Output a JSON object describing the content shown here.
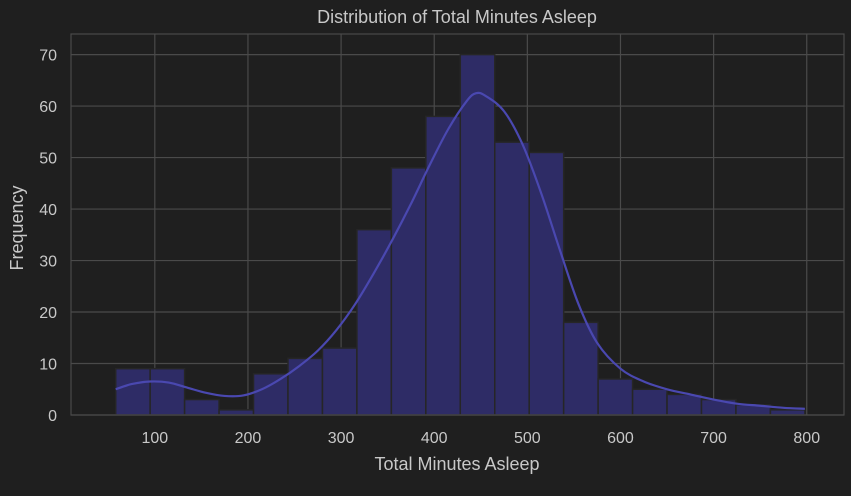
{
  "chart_data": {
    "type": "bar",
    "title": "Distribution of Total Minutes Asleep",
    "xlabel": "Total Minutes Asleep",
    "ylabel": "Frequency",
    "xlim": [
      10,
      840
    ],
    "ylim": [
      0,
      74
    ],
    "xticks": [
      100,
      200,
      300,
      400,
      500,
      600,
      700,
      800
    ],
    "yticks": [
      0,
      10,
      20,
      30,
      40,
      50,
      60,
      70
    ],
    "grid": true,
    "legend": "none",
    "bins": [
      {
        "start": 58,
        "end": 95,
        "count": 9
      },
      {
        "start": 95,
        "end": 132,
        "count": 9
      },
      {
        "start": 132,
        "end": 169,
        "count": 3
      },
      {
        "start": 169,
        "end": 206,
        "count": 1
      },
      {
        "start": 206,
        "end": 243,
        "count": 8
      },
      {
        "start": 243,
        "end": 280,
        "count": 11
      },
      {
        "start": 280,
        "end": 317,
        "count": 13
      },
      {
        "start": 317,
        "end": 354,
        "count": 36
      },
      {
        "start": 354,
        "end": 391,
        "count": 48
      },
      {
        "start": 391,
        "end": 428,
        "count": 58
      },
      {
        "start": 428,
        "end": 465,
        "count": 70
      },
      {
        "start": 465,
        "end": 502,
        "count": 53
      },
      {
        "start": 502,
        "end": 539,
        "count": 51
      },
      {
        "start": 539,
        "end": 576,
        "count": 18
      },
      {
        "start": 576,
        "end": 613,
        "count": 7
      },
      {
        "start": 613,
        "end": 650,
        "count": 5
      },
      {
        "start": 650,
        "end": 687,
        "count": 4
      },
      {
        "start": 687,
        "end": 724,
        "count": 3
      },
      {
        "start": 724,
        "end": 761,
        "count": 2
      },
      {
        "start": 761,
        "end": 798,
        "count": 1
      }
    ],
    "kde": {
      "x": [
        58,
        75,
        95,
        115,
        135,
        155,
        175,
        195,
        215,
        235,
        255,
        275,
        295,
        315,
        335,
        355,
        375,
        395,
        415,
        435,
        445,
        455,
        475,
        495,
        515,
        535,
        555,
        575,
        600,
        625,
        650,
        675,
        700,
        725,
        750,
        775,
        798
      ],
      "y": [
        5,
        6,
        6.5,
        6.3,
        5.3,
        4.3,
        3.7,
        3.8,
        5,
        7,
        9.5,
        12.5,
        16.5,
        21.5,
        27.5,
        34,
        41,
        48.5,
        55.5,
        61,
        62.5,
        62,
        59,
        52.5,
        43,
        32,
        21.5,
        14,
        9,
        6.5,
        5,
        4,
        3,
        2.2,
        1.8,
        1.4,
        1.2
      ]
    },
    "colors": {
      "background": "#1f1f1f",
      "grid": "#4a4a4a",
      "bar_fill": "#2e2c66",
      "bar_edge": "#262626",
      "kde_line": "#4a48b0",
      "text": "#c8c8c8"
    }
  }
}
